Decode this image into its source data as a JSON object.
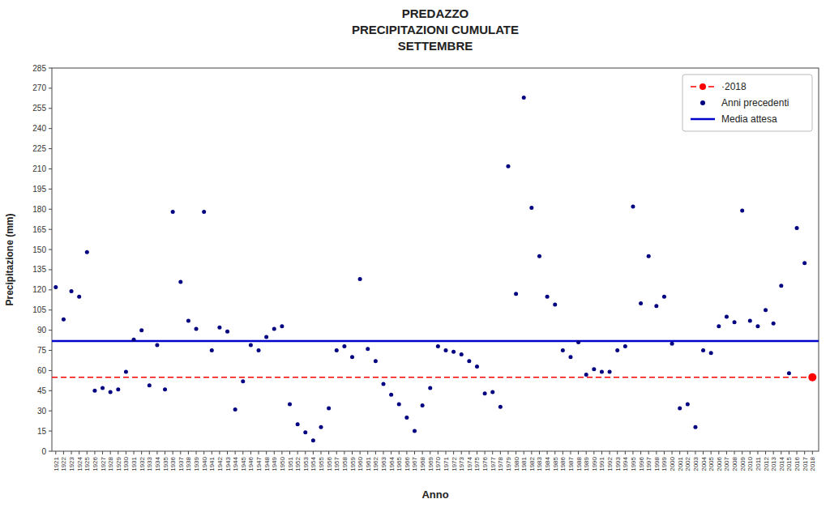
{
  "chart_data": {
    "type": "scatter",
    "title": "PREDAZZO\nPRECIPITAZIONI CUMULATE\nSETTEMBRE",
    "x_label": "Anno",
    "y_label": "Precipitazione (mm)",
    "xlim": [
      1920.5,
      2018.8
    ],
    "xticks": [
      1921,
      1922,
      1923,
      1924,
      1925,
      1926,
      1927,
      1928,
      1929,
      1930,
      1931,
      1932,
      1933,
      1934,
      1935,
      1936,
      1937,
      1938,
      1939,
      1940,
      1941,
      1942,
      1943,
      1944,
      1945,
      1946,
      1947,
      1948,
      1949,
      1950,
      1951,
      1952,
      1953,
      1954,
      1955,
      1956,
      1957,
      1958,
      1959,
      1960,
      1961,
      1962,
      1963,
      1964,
      1965,
      1966,
      1967,
      1968,
      1969,
      1970,
      1971,
      1972,
      1973,
      1974,
      1975,
      1976,
      1977,
      1978,
      1979,
      1980,
      1981,
      1982,
      1983,
      1984,
      1985,
      1986,
      1987,
      1988,
      1989,
      1990,
      1991,
      1992,
      1993,
      1994,
      1995,
      1996,
      1997,
      1998,
      1999,
      2000,
      2001,
      2002,
      2003,
      2004,
      2005,
      2006,
      2007,
      2008,
      2009,
      2010,
      2011,
      2012,
      2013,
      2014,
      2015,
      2016,
      2017,
      2018
    ],
    "ylim": [
      0,
      285
    ],
    "yticks": [
      0,
      15,
      30,
      45,
      60,
      75,
      90,
      105,
      120,
      135,
      150,
      165,
      180,
      195,
      210,
      225,
      240,
      255,
      270,
      285
    ],
    "grid": false,
    "legend": "upper right",
    "series": [
      {
        "name": "·2018",
        "type": "scatter",
        "color": "#ff0000",
        "marker": "circle",
        "line_style": "dashed",
        "x": [
          2018
        ],
        "values": [
          55
        ]
      },
      {
        "name": "Anni precedenti",
        "type": "scatter",
        "color": "#000080",
        "marker": "circle",
        "x": [
          1921,
          1922,
          1923,
          1924,
          1925,
          1926,
          1927,
          1928,
          1929,
          1930,
          1931,
          1932,
          1933,
          1934,
          1935,
          1936,
          1937,
          1938,
          1939,
          1940,
          1941,
          1942,
          1943,
          1944,
          1945,
          1946,
          1947,
          1948,
          1949,
          1950,
          1951,
          1952,
          1953,
          1954,
          1955,
          1956,
          1957,
          1958,
          1959,
          1960,
          1961,
          1962,
          1963,
          1964,
          1965,
          1966,
          1967,
          1968,
          1969,
          1970,
          1971,
          1972,
          1973,
          1974,
          1975,
          1976,
          1977,
          1978,
          1979,
          1980,
          1981,
          1982,
          1983,
          1984,
          1985,
          1986,
          1987,
          1988,
          1989,
          1990,
          1991,
          1992,
          1993,
          1994,
          1995,
          1996,
          1997,
          1998,
          1999,
          2000,
          2001,
          2002,
          2003,
          2004,
          2005,
          2006,
          2007,
          2008,
          2009,
          2010,
          2011,
          2012,
          2013,
          2014,
          2015,
          2016,
          2017
        ],
        "values": [
          122,
          98,
          119,
          115,
          148,
          45,
          47,
          44,
          46,
          59,
          83,
          90,
          49,
          79,
          46,
          178,
          126,
          97,
          91,
          178,
          75,
          92,
          89,
          31,
          52,
          79,
          75,
          85,
          91,
          93,
          35,
          20,
          14,
          8,
          18,
          32,
          75,
          78,
          70,
          128,
          76,
          67,
          50,
          42,
          35,
          25,
          15,
          34,
          47,
          78,
          75,
          74,
          72,
          67,
          63,
          43,
          44,
          33,
          212,
          117,
          263,
          181,
          145,
          115,
          109,
          75,
          70,
          81,
          57,
          61,
          59,
          59,
          75,
          78,
          182,
          110,
          145,
          108,
          115,
          80,
          32,
          35,
          18,
          75,
          73,
          93,
          100,
          96,
          179,
          97,
          93,
          105,
          95,
          123,
          58,
          166,
          140
        ]
      },
      {
        "name": "Media attesa",
        "type": "hline",
        "color": "#0000cd",
        "line_style": "solid",
        "values": [
          82
        ]
      }
    ]
  }
}
